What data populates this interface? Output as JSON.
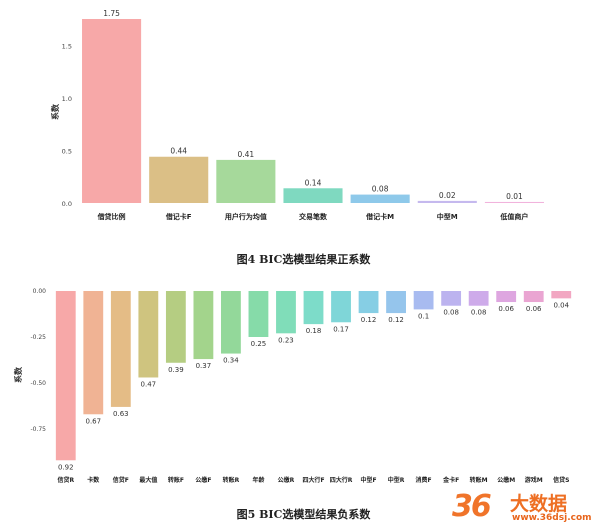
{
  "chart_data": [
    {
      "type": "bar",
      "title": "",
      "ylabel": "系数",
      "xlabel": "",
      "ylim": [
        0,
        1.8
      ],
      "yticks": [
        0.0,
        0.5,
        1.0,
        1.5
      ],
      "ytick_labels": [
        "0.0",
        "0.5",
        "1.0",
        "1.5"
      ],
      "categories": [
        "借贷比例",
        "借记卡F",
        "用户行为均值",
        "交易笔数",
        "借记卡M",
        "中型M",
        "低值商户"
      ],
      "values": [
        1.75,
        0.44,
        0.41,
        0.14,
        0.08,
        0.02,
        0.01
      ],
      "value_labels": [
        "1.75",
        "0.44",
        "0.41",
        "0.14",
        "0.08",
        "0.02",
        "0.01"
      ],
      "colors": [
        "#f7a8a8",
        "#dbbf86",
        "#a6d99b",
        "#7fd9c0",
        "#8ec9ea",
        "#c5b9ee",
        "#f1b3dc"
      ],
      "grid": false,
      "caption": "图4  BIC选模型结果正系数"
    },
    {
      "type": "bar",
      "title": "",
      "ylabel": "系数",
      "xlabel": "",
      "ylim": [
        -0.95,
        0.0
      ],
      "yticks": [
        0.0,
        -0.25,
        -0.5,
        -0.75
      ],
      "ytick_labels": [
        "0.00",
        "-0.25",
        "-0.50",
        "-0.75"
      ],
      "categories": [
        "信贷R",
        "卡数",
        "信贷F",
        "最大值",
        "转账F",
        "公缴F",
        "转账R",
        "年龄",
        "公缴R",
        "四大行F",
        "四大行R",
        "中型F",
        "中型R",
        "消费F",
        "金卡F",
        "转账M",
        "公缴M",
        "游戏M",
        "信贷S"
      ],
      "values": [
        -0.92,
        -0.67,
        -0.63,
        -0.47,
        -0.39,
        -0.37,
        -0.34,
        -0.25,
        -0.23,
        -0.18,
        -0.17,
        -0.12,
        -0.12,
        -0.1,
        -0.08,
        -0.08,
        -0.06,
        -0.06,
        -0.04
      ],
      "value_labels": [
        "0.92",
        "0.67",
        "0.63",
        "0.47",
        "0.39",
        "0.37",
        "0.34",
        "0.25",
        "0.23",
        "0.18",
        "0.17",
        "0.12",
        "0.12",
        "0.1",
        "0.08",
        "0.08",
        "0.06",
        "0.06",
        "0.04"
      ],
      "colors": [
        "#f7a8a8",
        "#f0b394",
        "#e4bc86",
        "#cfc47f",
        "#b5cd82",
        "#a3d48c",
        "#93d89a",
        "#86dba9",
        "#80ddb9",
        "#7ddcc9",
        "#7fd6d8",
        "#86cee4",
        "#95c5ec",
        "#a8bbf0",
        "#bcb3ef",
        "#ceabea",
        "#dea6e0",
        "#eaa5d2",
        "#f2a7c2"
      ],
      "grid": false,
      "caption": "图5  BIC选模型结果负系数"
    }
  ],
  "watermark": {
    "logo": "36",
    "name": "大数据",
    "url": "www.36dsj.com"
  }
}
